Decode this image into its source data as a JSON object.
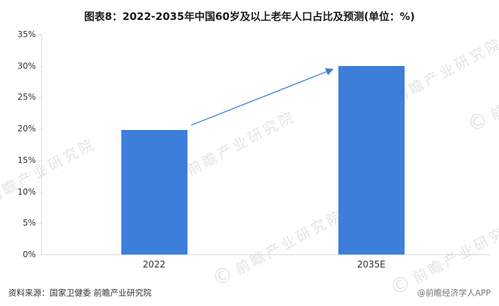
{
  "chart_data": {
    "type": "bar",
    "title": "图表8：2022-2035年中国60岁及以上老年人口占比及预测(单位：%)",
    "categories": [
      "2022",
      "2035E"
    ],
    "values": [
      19.8,
      30
    ],
    "unit": "%",
    "xlabel": "",
    "ylabel": "",
    "ylim": [
      0,
      35
    ],
    "ytick_step": 5,
    "ytick_labels": [
      "0%",
      "5%",
      "10%",
      "15%",
      "20%",
      "25%",
      "30%",
      "35%"
    ],
    "bar_color": "#3d7edb",
    "grid": false,
    "legend_position": "none",
    "annotation": {
      "type": "arrow",
      "from_category": "2022",
      "to_category": "2035E",
      "color": "#3d7edb",
      "meaning": "growth from 2022 value to 2035E forecast"
    }
  },
  "watermark": {
    "symbol": "©",
    "text": "前瞻产业研究院",
    "color": "#e4e4e4"
  },
  "footer": {
    "source": "资料来源：国家卫健委 前瞻产业研究院",
    "credit": "@前瞻经济学人APP"
  }
}
